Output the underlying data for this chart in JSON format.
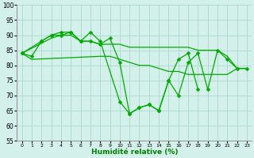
{
  "x_labels": [
    0,
    1,
    2,
    3,
    4,
    5,
    6,
    7,
    8,
    9,
    10,
    11,
    12,
    13,
    14,
    15,
    16,
    17,
    18,
    19,
    20,
    21,
    22,
    23
  ],
  "line1_x": [
    0,
    2,
    3,
    4,
    5,
    6,
    7,
    8,
    9,
    10,
    11,
    12,
    13,
    14,
    15,
    16,
    17,
    18
  ],
  "line1_y": [
    84,
    88,
    90,
    90,
    91,
    88,
    88,
    87,
    89,
    81,
    64,
    66,
    67,
    65,
    75,
    82,
    84,
    72
  ],
  "line2_x": [
    0,
    1,
    2,
    3,
    4,
    5,
    6,
    7,
    8,
    10,
    11,
    12,
    13,
    14,
    15,
    16,
    17,
    18,
    19,
    20,
    21,
    22,
    23
  ],
  "line2_y": [
    84,
    83,
    88,
    90,
    91,
    91,
    88,
    91,
    88,
    68,
    64,
    66,
    67,
    65,
    75,
    70,
    81,
    84,
    72,
    85,
    82,
    79,
    79
  ],
  "line3_x": [
    0,
    3,
    4,
    5,
    6,
    7,
    8,
    9,
    10,
    11,
    12,
    13,
    14,
    15,
    16,
    17,
    18,
    19,
    20,
    21,
    22,
    23
  ],
  "line3_y": [
    84,
    89,
    90,
    90,
    88,
    88,
    87,
    87,
    87,
    86,
    86,
    86,
    86,
    86,
    86,
    86,
    85,
    85,
    85,
    83,
    79,
    79
  ],
  "line4_x": [
    0,
    1,
    8,
    9,
    10,
    11,
    12,
    13,
    14,
    15,
    16,
    17,
    18,
    19,
    20,
    21,
    22,
    23
  ],
  "line4_y": [
    84,
    82,
    83,
    83,
    82,
    81,
    80,
    80,
    79,
    78,
    78,
    77,
    77,
    77,
    77,
    77,
    79,
    79
  ],
  "background_color": "#d4f0ea",
  "grid_color": "#aad8cc",
  "line_color": "#00aa00",
  "marker": "D",
  "marker_size": 2.5,
  "line_width": 0.9,
  "xlabel": "Humidité relative (%)",
  "ylim": [
    55,
    100
  ],
  "yticks": [
    55,
    60,
    65,
    70,
    75,
    80,
    85,
    90,
    95,
    100
  ],
  "xlim": [
    -0.5,
    23.5
  ]
}
